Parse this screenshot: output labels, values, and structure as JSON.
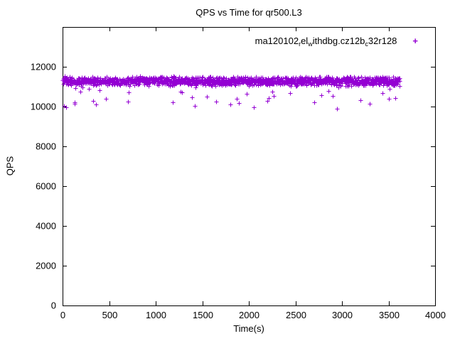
{
  "page": {
    "background": "#ffffff",
    "axis_color": "#000000"
  },
  "chart_data": {
    "type": "scatter",
    "title": "QPS vs Time for qr500.L3",
    "xlabel": "Time(s)",
    "ylabel": "QPS",
    "xlim": [
      0,
      4000
    ],
    "ylim": [
      0,
      14000
    ],
    "x_ticks": [
      0,
      500,
      1000,
      1500,
      2000,
      2500,
      3000,
      3500,
      4000
    ],
    "y_ticks": [
      0,
      2000,
      4000,
      6000,
      8000,
      10000,
      12000
    ],
    "grid": false,
    "legend_position": "top-right-inside",
    "series": [
      {
        "name": "ma120102_rel_withdbg.cz12b_c32r128",
        "label_segments": [
          {
            "t": "ma120102"
          },
          {
            "s": "r"
          },
          {
            "t": "el"
          },
          {
            "s": "w"
          },
          {
            "t": "ithdbg.cz12b"
          },
          {
            "s": "c"
          },
          {
            "t": "32r128"
          }
        ],
        "marker": "plus",
        "color": "#9400d3",
        "data_summary": {
          "x_start": 2,
          "x_end": 3620,
          "n_points": 1500,
          "band_center": 11280,
          "band_halfwidth": 260,
          "dip_fraction": 0.025,
          "dip_extra_min": 200,
          "dip_extra_max": 1100,
          "seed": 20241207
        },
        "outliers": [
          [
            15,
            10050
          ],
          [
            40,
            9950
          ],
          [
            130,
            10150
          ],
          [
            330,
            10300
          ],
          [
            700,
            10250
          ],
          [
            1180,
            10200
          ],
          [
            1420,
            10050
          ],
          [
            1650,
            10250
          ],
          [
            1800,
            10100
          ],
          [
            2050,
            9950
          ],
          [
            2200,
            10300
          ],
          [
            2700,
            10200
          ],
          [
            2950,
            9900
          ],
          [
            3300,
            10150
          ],
          [
            3500,
            10400
          ]
        ]
      }
    ]
  }
}
